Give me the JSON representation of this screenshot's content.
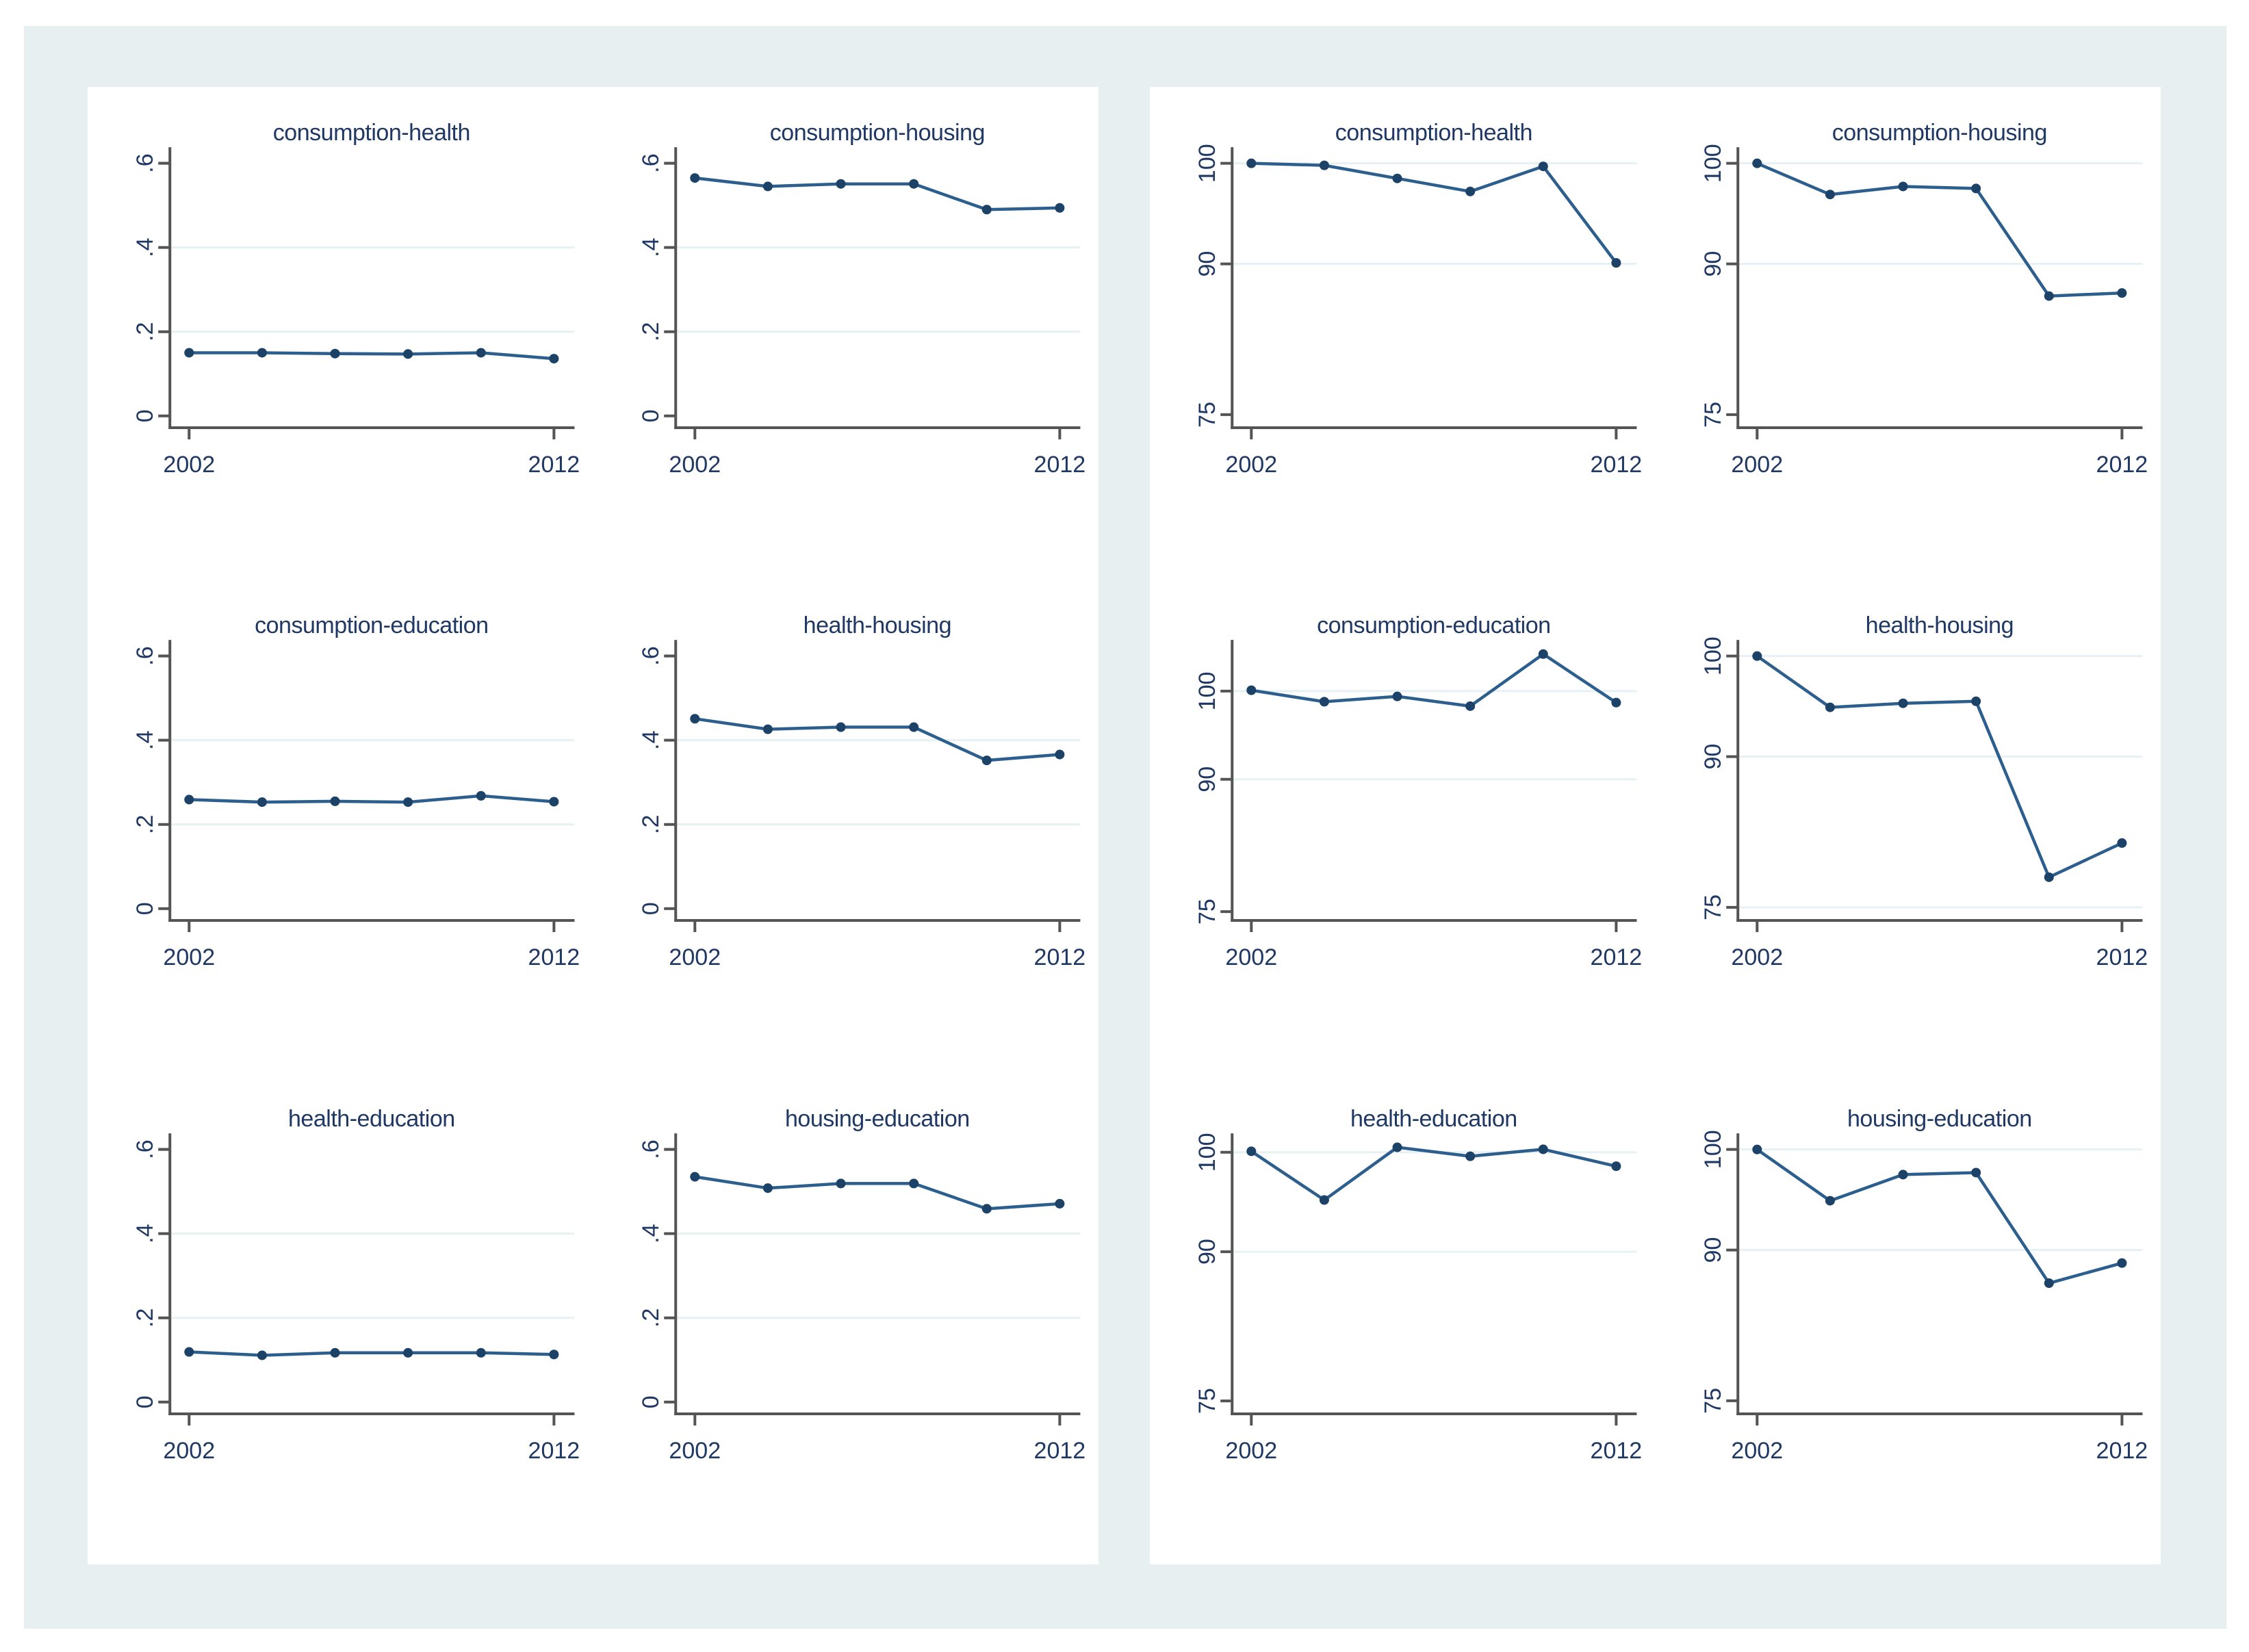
{
  "figure": {
    "kind": "two multi-panel line-chart figures (Stata style), 6 small charts per panel",
    "background_color": "#e8eff1",
    "panel_background": "#ffffff"
  },
  "colors": {
    "title_text": "#1f3864",
    "tick_label_text": "#1f3864",
    "line": "#2d5f8e",
    "marker": "#1d4268",
    "gridline": "#e7f1f3",
    "axis": "#545454"
  },
  "x_axis": {
    "years": [
      2002,
      2004,
      2006,
      2008,
      2010,
      2012
    ],
    "tick_years": [
      2002,
      2012
    ],
    "tick_labels": [
      "2002",
      "2012"
    ]
  },
  "chart_data": [
    {
      "panel": "left",
      "type": "line",
      "title": "consumption-health",
      "x": [
        2002,
        2004,
        2006,
        2008,
        2010,
        2012
      ],
      "values": [
        0.15,
        0.15,
        0.148,
        0.147,
        0.15,
        0.136
      ],
      "yticks": [
        0,
        0.2,
        0.4,
        0.6
      ],
      "ytick_labels": [
        "0",
        ".2",
        ".4",
        ".6"
      ],
      "gridlines": [
        0.2,
        0.4
      ],
      "ylim": [
        -0.028,
        0.638
      ]
    },
    {
      "panel": "left",
      "type": "line",
      "title": "consumption-housing",
      "x": [
        2002,
        2004,
        2006,
        2008,
        2010,
        2012
      ],
      "values": [
        0.565,
        0.545,
        0.551,
        0.551,
        0.49,
        0.494
      ],
      "yticks": [
        0,
        0.2,
        0.4,
        0.6
      ],
      "ytick_labels": [
        "0",
        ".2",
        ".4",
        ".6"
      ],
      "gridlines": [
        0.2,
        0.4
      ],
      "ylim": [
        -0.028,
        0.638
      ]
    },
    {
      "panel": "left",
      "type": "line",
      "title": "consumption-education",
      "x": [
        2002,
        2004,
        2006,
        2008,
        2010,
        2012
      ],
      "values": [
        0.259,
        0.253,
        0.255,
        0.253,
        0.268,
        0.254
      ],
      "yticks": [
        0,
        0.2,
        0.4,
        0.6
      ],
      "ytick_labels": [
        "0",
        ".2",
        ".4",
        ".6"
      ],
      "gridlines": [
        0.2,
        0.4
      ],
      "ylim": [
        -0.028,
        0.638
      ]
    },
    {
      "panel": "left",
      "type": "line",
      "title": "health-housing",
      "x": [
        2002,
        2004,
        2006,
        2008,
        2010,
        2012
      ],
      "values": [
        0.451,
        0.426,
        0.431,
        0.431,
        0.352,
        0.366
      ],
      "yticks": [
        0,
        0.2,
        0.4,
        0.6
      ],
      "ytick_labels": [
        "0",
        ".2",
        ".4",
        ".6"
      ],
      "gridlines": [
        0.2,
        0.4
      ],
      "ylim": [
        -0.028,
        0.638
      ]
    },
    {
      "panel": "left",
      "type": "line",
      "title": "health-education",
      "x": [
        2002,
        2004,
        2006,
        2008,
        2010,
        2012
      ],
      "values": [
        0.119,
        0.111,
        0.117,
        0.117,
        0.117,
        0.113
      ],
      "yticks": [
        0,
        0.2,
        0.4,
        0.6
      ],
      "ytick_labels": [
        "0",
        ".2",
        ".4",
        ".6"
      ],
      "gridlines": [
        0.2,
        0.4
      ],
      "ylim": [
        -0.028,
        0.638
      ]
    },
    {
      "panel": "left",
      "type": "line",
      "title": "housing-education",
      "x": [
        2002,
        2004,
        2006,
        2008,
        2010,
        2012
      ],
      "values": [
        0.535,
        0.508,
        0.519,
        0.519,
        0.459,
        0.471
      ],
      "yticks": [
        0,
        0.2,
        0.4,
        0.6
      ],
      "ytick_labels": [
        "0",
        ".2",
        ".4",
        ".6"
      ],
      "gridlines": [
        0.2,
        0.4
      ],
      "ylim": [
        -0.028,
        0.638
      ]
    },
    {
      "panel": "right",
      "type": "line",
      "title": "consumption-health",
      "x": [
        2002,
        2004,
        2006,
        2008,
        2010,
        2012
      ],
      "values": [
        100.0,
        99.8,
        98.5,
        97.2,
        99.7,
        90.1
      ],
      "yticks": [
        75,
        90,
        100
      ],
      "ytick_labels": [
        "75",
        "90",
        "100"
      ],
      "gridlines": [
        90,
        100
      ],
      "ylim": [
        73.7,
        101.6
      ]
    },
    {
      "panel": "right",
      "type": "line",
      "title": "consumption-housing",
      "x": [
        2002,
        2004,
        2006,
        2008,
        2010,
        2012
      ],
      "values": [
        100.0,
        96.9,
        97.7,
        97.5,
        86.8,
        87.1
      ],
      "yticks": [
        75,
        90,
        100
      ],
      "ytick_labels": [
        "75",
        "90",
        "100"
      ],
      "gridlines": [
        90,
        100
      ],
      "ylim": [
        73.7,
        101.6
      ]
    },
    {
      "panel": "right",
      "type": "line",
      "title": "consumption-education",
      "x": [
        2002,
        2004,
        2006,
        2008,
        2010,
        2012
      ],
      "values": [
        100.1,
        98.8,
        99.4,
        98.3,
        104.2,
        98.7
      ],
      "yticks": [
        75,
        90,
        100
      ],
      "ytick_labels": [
        "75",
        "90",
        "100"
      ],
      "gridlines": [
        90,
        100
      ],
      "ylim": [
        74.0,
        105.8
      ]
    },
    {
      "panel": "right",
      "type": "line",
      "title": "health-housing",
      "x": [
        2002,
        2004,
        2006,
        2008,
        2010,
        2012
      ],
      "values": [
        100.0,
        94.9,
        95.3,
        95.5,
        78.0,
        81.4
      ],
      "yticks": [
        75,
        90,
        100
      ],
      "ytick_labels": [
        "75",
        "90",
        "100"
      ],
      "gridlines": [
        75,
        90,
        100
      ],
      "ylim": [
        73.7,
        101.6
      ]
    },
    {
      "panel": "right",
      "type": "line",
      "title": "health-education",
      "x": [
        2002,
        2004,
        2006,
        2008,
        2010,
        2012
      ],
      "values": [
        100.1,
        95.2,
        100.5,
        99.6,
        100.3,
        98.6
      ],
      "yticks": [
        75,
        90,
        100
      ],
      "ytick_labels": [
        "75",
        "90",
        "100"
      ],
      "gridlines": [
        90,
        100
      ],
      "ylim": [
        73.7,
        101.9
      ]
    },
    {
      "panel": "right",
      "type": "line",
      "title": "housing-education",
      "x": [
        2002,
        2004,
        2006,
        2008,
        2010,
        2012
      ],
      "values": [
        100.0,
        94.9,
        97.5,
        97.7,
        86.7,
        88.7
      ],
      "yticks": [
        75,
        90,
        100
      ],
      "ytick_labels": [
        "75",
        "90",
        "100"
      ],
      "gridlines": [
        90,
        100
      ],
      "ylim": [
        73.7,
        101.6
      ]
    }
  ]
}
